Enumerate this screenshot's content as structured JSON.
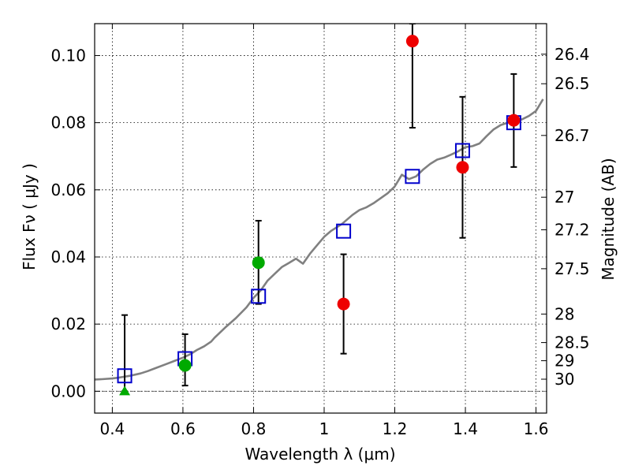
{
  "chart_data": {
    "type": "scatter",
    "xlabel": "Wavelength  λ (μm)",
    "ylabel": "Flux  Fν  ( μJy )",
    "y2label": "Magnitude (AB)",
    "xlim": [
      0.35,
      1.63
    ],
    "ylim": [
      -0.0065,
      0.1095
    ],
    "grid": true,
    "x_ticks": [
      0.4,
      0.6,
      0.8,
      1.0,
      1.2,
      1.4,
      1.6
    ],
    "x_tick_labels": [
      "0.4",
      "0.6",
      "0.8",
      "1",
      "1.2",
      "1.4",
      "1.6"
    ],
    "y_ticks": [
      0.0,
      0.02,
      0.04,
      0.06,
      0.08,
      0.1
    ],
    "y_tick_labels": [
      "0.00",
      "0.02",
      "0.04",
      "0.06",
      "0.08",
      "0.10"
    ],
    "right_ticks": [
      {
        "label": "26.4",
        "flux": 0.1004
      },
      {
        "label": "26.5",
        "flux": 0.0916
      },
      {
        "label": "26.7",
        "flux": 0.0762
      },
      {
        "label": "27",
        "flux": 0.0578
      },
      {
        "label": "27.2",
        "flux": 0.0481
      },
      {
        "label": "27.5",
        "flux": 0.0365
      },
      {
        "label": "28",
        "flux": 0.023
      },
      {
        "label": "28.5",
        "flux": 0.0145
      },
      {
        "label": "29",
        "flux": 0.0091
      },
      {
        "label": "30",
        "flux": 0.0036
      }
    ],
    "series": [
      {
        "kind": "model_spectrum",
        "color": "#808080",
        "x": [
          0.35,
          0.37,
          0.4,
          0.42,
          0.45,
          0.48,
          0.5,
          0.52,
          0.55,
          0.58,
          0.6,
          0.62,
          0.64,
          0.66,
          0.68,
          0.69,
          0.7,
          0.72,
          0.75,
          0.78,
          0.8,
          0.82,
          0.84,
          0.86,
          0.88,
          0.9,
          0.92,
          0.94,
          0.96,
          0.98,
          1.0,
          1.02,
          1.05,
          1.08,
          1.1,
          1.12,
          1.14,
          1.16,
          1.18,
          1.2,
          1.22,
          1.24,
          1.26,
          1.28,
          1.3,
          1.32,
          1.34,
          1.36,
          1.38,
          1.4,
          1.42,
          1.44,
          1.46,
          1.48,
          1.5,
          1.52,
          1.54,
          1.56,
          1.58,
          1.6,
          1.62
        ],
        "y": [
          0.0035,
          0.0036,
          0.0038,
          0.0041,
          0.0046,
          0.0053,
          0.006,
          0.0068,
          0.008,
          0.0092,
          0.01,
          0.011,
          0.0123,
          0.0134,
          0.0148,
          0.016,
          0.017,
          0.019,
          0.0218,
          0.025,
          0.0278,
          0.03,
          0.033,
          0.035,
          0.037,
          0.0382,
          0.0395,
          0.038,
          0.041,
          0.0435,
          0.046,
          0.0478,
          0.0498,
          0.0525,
          0.054,
          0.0548,
          0.056,
          0.0575,
          0.059,
          0.061,
          0.0645,
          0.0632,
          0.064,
          0.066,
          0.0677,
          0.069,
          0.0696,
          0.0705,
          0.0715,
          0.0727,
          0.073,
          0.0738,
          0.076,
          0.078,
          0.0793,
          0.08,
          0.0805,
          0.081,
          0.082,
          0.0835,
          0.087
        ]
      },
      {
        "kind": "model_photometry",
        "marker": "open-square",
        "color": "#0000cc",
        "x": [
          0.435,
          0.606,
          0.814,
          1.055,
          1.25,
          1.392,
          1.537
        ],
        "y": [
          0.0046,
          0.0097,
          0.0283,
          0.0477,
          0.064,
          0.0717,
          0.08
        ]
      },
      {
        "kind": "detections_blue_bands",
        "marker": "filled-circle",
        "color": "#00aa00",
        "x": [
          0.606,
          0.814
        ],
        "y": [
          0.0077,
          0.0383
        ],
        "yerr_low": [
          0.0017,
          0.026
        ],
        "yerr_high": [
          0.017,
          0.0508
        ]
      },
      {
        "kind": "detections_red_bands",
        "marker": "filled-circle",
        "color": "#ee0000",
        "x": [
          1.055,
          1.25,
          1.392,
          1.537
        ],
        "y": [
          0.026,
          0.1043,
          0.0667,
          0.0807
        ],
        "yerr_low": [
          0.0112,
          0.0785,
          0.0457,
          0.0668
        ],
        "yerr_high": [
          0.0408,
          0.1095,
          0.0877,
          0.0945
        ]
      },
      {
        "kind": "upper_limit",
        "marker": "triangle",
        "color": "#00aa00",
        "x": [
          0.435
        ],
        "y": [
          0.0
        ],
        "yerr_low": [
          0.0
        ],
        "yerr_high": [
          0.0227
        ]
      }
    ]
  }
}
